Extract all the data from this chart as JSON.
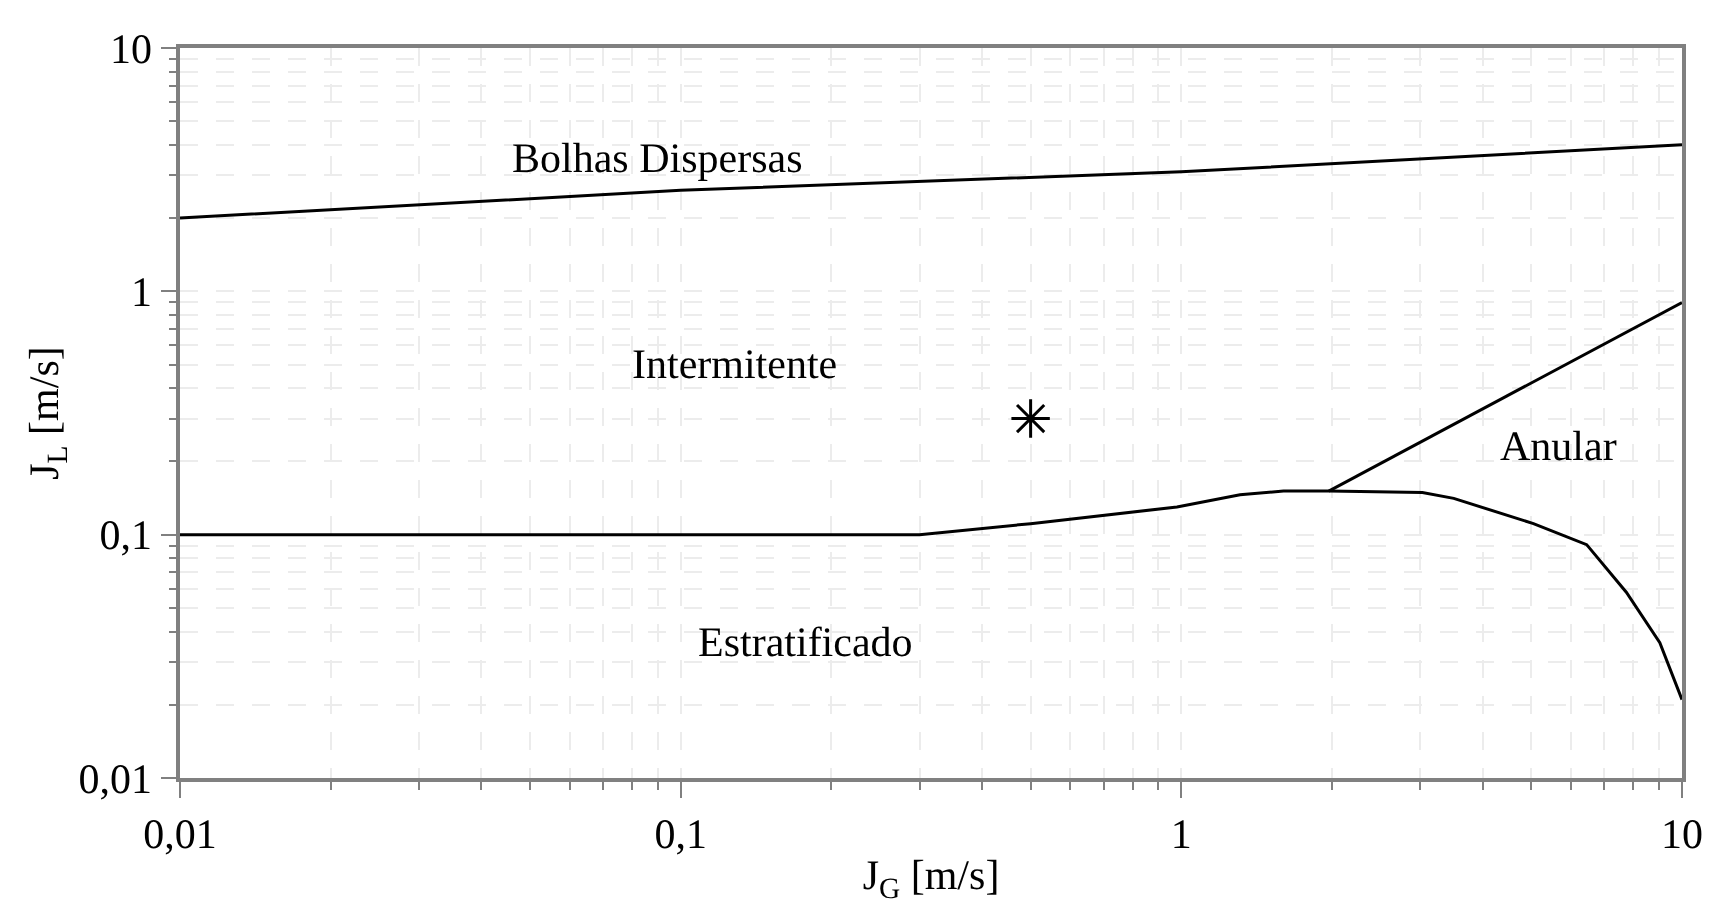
{
  "chart_data": {
    "type": "line",
    "xlabel": "J$_{G}$ [m/s]",
    "ylabel": "J$_{L}$ [m/s]",
    "log": "xy",
    "grid": true,
    "xlim": [
      0.01,
      10
    ],
    "ylim": [
      0.01,
      10
    ],
    "xticks": [
      {
        "value": 0.01,
        "label": "0,01"
      },
      {
        "value": 0.1,
        "label": "0,1"
      },
      1,
      10
    ],
    "yticks": [
      {
        "value": 0.01,
        "label": "0,01"
      },
      {
        "value": 0.1,
        "label": "0,1"
      },
      1,
      10
    ],
    "series": [
      {
        "color": "#000000",
        "x": [
          0.01,
          0.1,
          1,
          10
        ],
        "values": [
          2.0,
          2.6,
          3.1,
          4.0
        ]
      },
      {
        "color": "#000000",
        "x": [
          0.01,
          0.3,
          0.5,
          0.98,
          1.31,
          1.6,
          1.97,
          3.03,
          3.5,
          5.05,
          6.45,
          7.74,
          9.03,
          10
        ],
        "values": [
          0.1,
          0.1,
          0.111,
          0.13,
          0.146,
          0.151,
          0.151,
          0.149,
          0.141,
          0.111,
          0.091,
          0.058,
          0.036,
          0.021
        ]
      },
      {
        "color": "#000000",
        "x": [
          1.97,
          10
        ],
        "values": [
          0.151,
          0.9
        ]
      },
      {
        "type": "scatter",
        "marker": "cross",
        "color": "#000000",
        "x": [
          0.5
        ],
        "values": [
          0.3
        ]
      }
    ],
    "annotations": [
      "Bolhas Dispersas",
      "Intermitente",
      "Estratificado",
      "Anular"
    ]
  }
}
